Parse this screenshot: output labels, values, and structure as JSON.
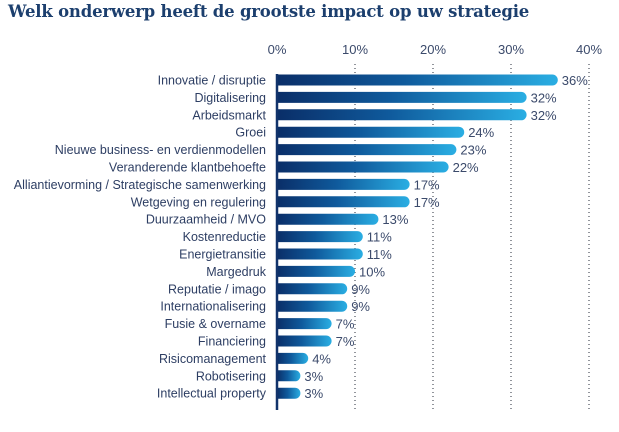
{
  "chart_data": {
    "type": "bar",
    "orientation": "horizontal",
    "title": "Welk onderwerp heeft de grootste impact op uw strategie",
    "xlabel": "",
    "ylabel": "",
    "xlim": [
      0,
      40
    ],
    "x_ticks": [
      0,
      10,
      20,
      30,
      40
    ],
    "x_tick_labels": [
      "0%",
      "10%",
      "20%",
      "30%",
      "40%"
    ],
    "x_axis_position": "top",
    "grid": "vertical dotted",
    "legend": "none",
    "categories": [
      "Innovatie / disruptie",
      "Digitalisering",
      "Arbeidsmarkt",
      "Groei",
      "Nieuwe business- en verdienmodellen",
      "Veranderende klantbehoefte",
      "Alliantievorming / Strategische samenwerking",
      "Wetgeving en regulering",
      "Duurzaamheid / MVO",
      "Kostenreductie",
      "Energietransitie",
      "Margedruk",
      "Reputatie / imago",
      "Internationalisering",
      "Fusie & overname",
      "Financiering",
      "Risicomanagement",
      "Robotisering",
      "Intellectual property"
    ],
    "values": [
      36,
      32,
      32,
      24,
      23,
      22,
      17,
      17,
      13,
      11,
      11,
      10,
      9,
      9,
      7,
      7,
      4,
      3,
      3
    ],
    "value_labels": [
      "36%",
      "32%",
      "32%",
      "24%",
      "23%",
      "22%",
      "17%",
      "17%",
      "13%",
      "11%",
      "11%",
      "10%",
      "9%",
      "9%",
      "7%",
      "7%",
      "4%",
      "3%",
      "3%"
    ],
    "unit": "%"
  },
  "colors": {
    "title": "#1c3f6e",
    "bar_gradient_start": "#0a2e68",
    "bar_gradient_mid": "#0f5a9c",
    "bar_gradient_end": "#2aaee3",
    "axis": "#12336b",
    "grid": "#4a4f5a",
    "label_text": "#2d3e63"
  }
}
